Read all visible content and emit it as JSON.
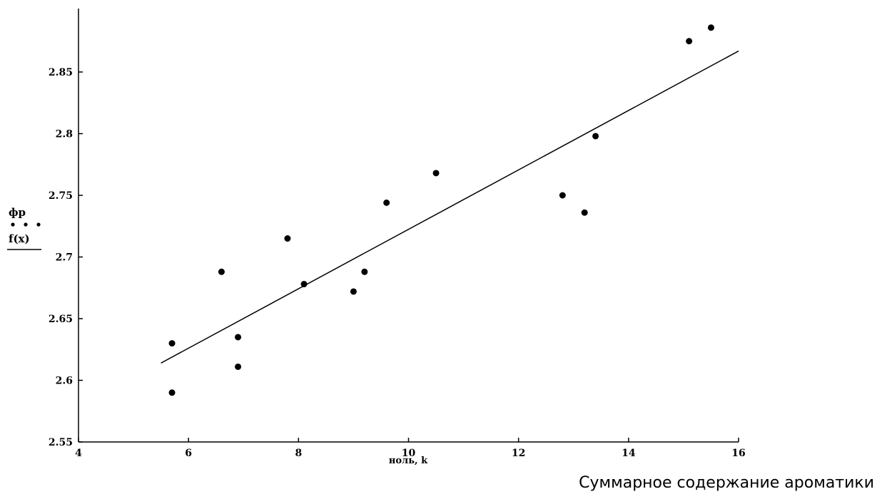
{
  "caption": "Суммарное содержание ароматики",
  "chart_data": {
    "type": "scatter",
    "xlabel": "ноль, k",
    "ylabel_top": "фр",
    "ylabel_bottom": "f(x)",
    "xlim": [
      4,
      16
    ],
    "ylim": [
      2.55,
      2.9
    ],
    "xticks": [
      "4",
      "6",
      "8",
      "10",
      "12",
      "14",
      "16"
    ],
    "yticks": [
      "2.55",
      "2.6",
      "2.65",
      "2.7",
      "2.75",
      "2.8",
      "2.85"
    ],
    "grid": false,
    "legend": "none",
    "series": [
      {
        "points": [
          [
            5.7,
            2.63
          ],
          [
            5.7,
            2.59
          ],
          [
            6.6,
            2.688
          ],
          [
            6.9,
            2.635
          ],
          [
            6.9,
            2.611
          ],
          [
            7.8,
            2.715
          ],
          [
            8.1,
            2.678
          ],
          [
            9.0,
            2.672
          ],
          [
            9.2,
            2.688
          ],
          [
            9.6,
            2.744
          ],
          [
            10.5,
            2.768
          ],
          [
            12.8,
            2.75
          ],
          [
            13.2,
            2.736
          ],
          [
            13.4,
            2.798
          ],
          [
            15.1,
            2.875
          ],
          [
            15.5,
            2.886
          ]
        ]
      },
      {
        "line": [
          [
            5.5,
            2.614
          ],
          [
            16.0,
            2.867
          ]
        ]
      }
    ]
  }
}
